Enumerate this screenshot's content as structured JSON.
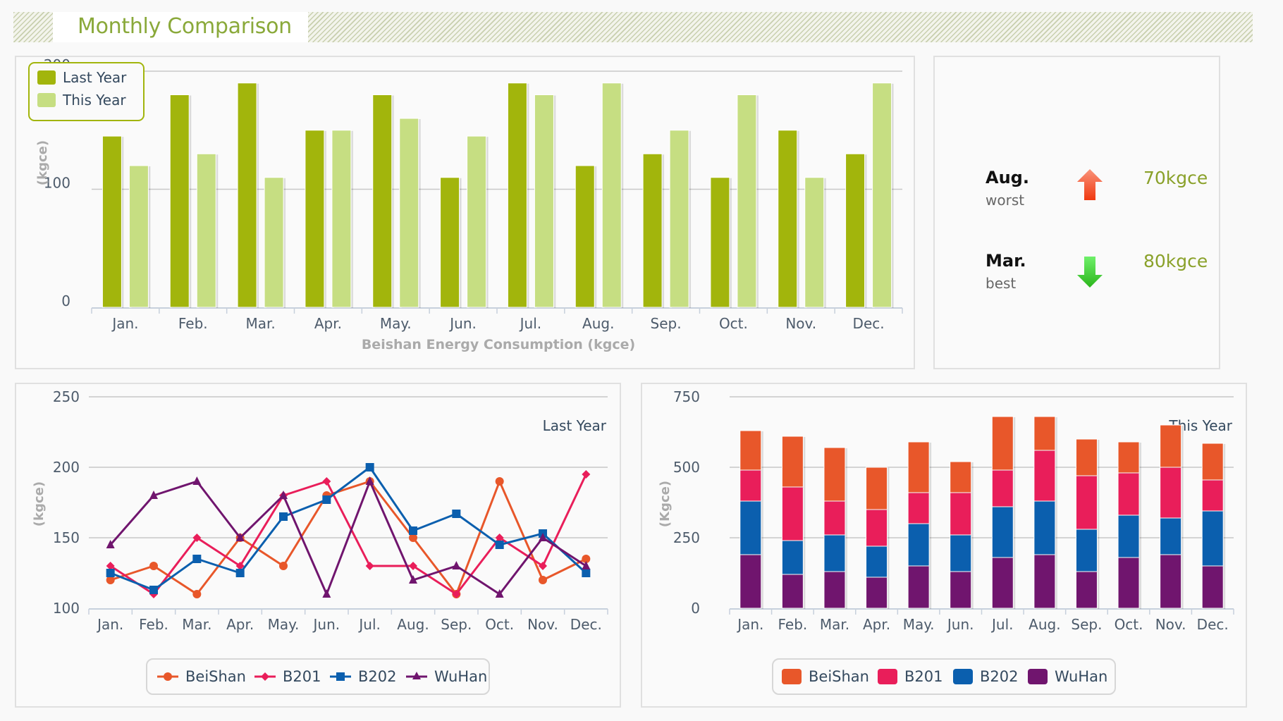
{
  "header": {
    "title": "Monthly Comparison"
  },
  "summary": {
    "worst": {
      "month": "Aug.",
      "label": "worst",
      "value": "70kgce",
      "icon": "arrow-up-icon",
      "color": "#f05a28"
    },
    "best": {
      "month": "Mar.",
      "label": "best",
      "value": "80kgce",
      "icon": "arrow-down-icon",
      "color": "#3cc52a"
    }
  },
  "colors": {
    "last_year": "#a2b50c",
    "this_year": "#c6de82",
    "BeiShan": "#e8572a",
    "B201": "#e91e5a",
    "B202": "#0b5fae",
    "WuHan": "#70156e"
  },
  "chart_data": [
    {
      "id": "yearly-comparison",
      "type": "bar",
      "title": "",
      "xlabel": "Beishan Energy Consumption (kgce)",
      "ylabel": "(kgce)",
      "ylim": [
        0,
        200
      ],
      "yticks": [
        "0",
        "100",
        "200"
      ],
      "grid": true,
      "legend": "top-left",
      "categories": [
        "Jan.",
        "Feb.",
        "Mar.",
        "Apr.",
        "May.",
        "Jun.",
        "Jul.",
        "Aug.",
        "Sep.",
        "Oct.",
        "Nov.",
        "Dec."
      ],
      "series": [
        {
          "name": "Last Year",
          "values": [
            145,
            180,
            190,
            150,
            180,
            110,
            190,
            120,
            130,
            110,
            150,
            130
          ]
        },
        {
          "name": "This Year",
          "values": [
            120,
            130,
            110,
            150,
            160,
            145,
            180,
            190,
            150,
            180,
            110,
            190
          ]
        }
      ]
    },
    {
      "id": "last-year-lines",
      "type": "line",
      "title": "Last Year",
      "xlabel": "",
      "ylabel": "(kgce)",
      "ylim": [
        100,
        250
      ],
      "yticks": [
        "100",
        "150",
        "200",
        "250"
      ],
      "grid": true,
      "legend": "bottom",
      "categories": [
        "Jan.",
        "Feb.",
        "Mar.",
        "Apr.",
        "May.",
        "Jun.",
        "Jul.",
        "Aug.",
        "Sep.",
        "Oct.",
        "Nov.",
        "Dec."
      ],
      "series": [
        {
          "name": "BeiShan",
          "marker": "circle",
          "values": [
            120,
            130,
            110,
            150,
            130,
            180,
            190,
            150,
            110,
            190,
            120,
            135
          ]
        },
        {
          "name": "B201",
          "marker": "diamond",
          "values": [
            130,
            110,
            150,
            130,
            180,
            190,
            130,
            130,
            110,
            150,
            130,
            195
          ]
        },
        {
          "name": "B202",
          "marker": "square",
          "values": [
            125,
            113,
            135,
            125,
            165,
            177,
            200,
            155,
            167,
            145,
            153,
            125
          ]
        },
        {
          "name": "WuHan",
          "marker": "triangle",
          "values": [
            145,
            180,
            190,
            150,
            180,
            110,
            190,
            120,
            130,
            110,
            150,
            130
          ]
        }
      ]
    },
    {
      "id": "this-year-stacked",
      "type": "bar",
      "stacked": true,
      "title": "This Year",
      "xlabel": "",
      "ylabel": "(Kgce)",
      "ylim": [
        0,
        750
      ],
      "yticks": [
        "0",
        "250",
        "500",
        "750"
      ],
      "grid": true,
      "legend": "bottom",
      "categories": [
        "Jan.",
        "Feb.",
        "Mar.",
        "Apr.",
        "May.",
        "Jun.",
        "Jul.",
        "Aug.",
        "Sep.",
        "Oct.",
        "Nov.",
        "Dec."
      ],
      "series": [
        {
          "name": "WuHan",
          "values": [
            190,
            120,
            130,
            110,
            150,
            130,
            180,
            190,
            130,
            180,
            190,
            150
          ]
        },
        {
          "name": "B202",
          "values": [
            190,
            120,
            130,
            110,
            150,
            130,
            180,
            190,
            150,
            150,
            130,
            195
          ]
        },
        {
          "name": "B201",
          "values": [
            110,
            190,
            120,
            130,
            110,
            150,
            130,
            180,
            190,
            150,
            180,
            110
          ]
        },
        {
          "name": "BeiShan",
          "values": [
            140,
            180,
            190,
            150,
            180,
            110,
            190,
            120,
            130,
            110,
            150,
            130
          ]
        }
      ],
      "legend_order": [
        "BeiShan",
        "B201",
        "B202",
        "WuHan"
      ]
    }
  ]
}
